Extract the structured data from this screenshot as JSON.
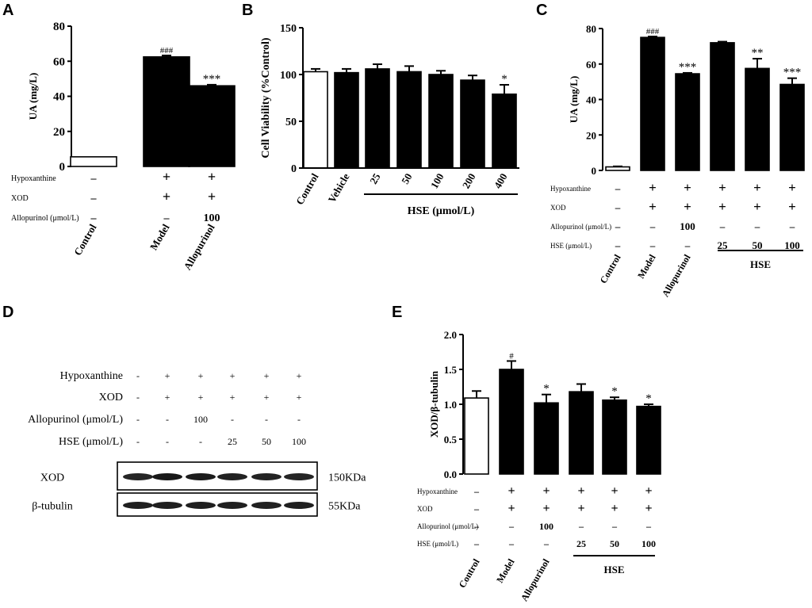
{
  "panels": {
    "A": "A",
    "B": "B",
    "C": "C",
    "D": "D",
    "E": "E"
  },
  "chart_data": [
    {
      "panel": "A",
      "type": "bar",
      "ylabel": "UA (mg/L)",
      "ylim": [
        0,
        80
      ],
      "yticks": [
        "0",
        "20",
        "40",
        "60",
        "80"
      ],
      "categories": [
        "Control",
        "Model",
        "Allopurinol"
      ],
      "values": [
        5.5,
        62.5,
        46.0
      ],
      "errors": [
        0,
        0.8,
        0.6
      ],
      "fills": [
        "white",
        "black",
        "black"
      ],
      "annotations": [
        "",
        "###",
        "***"
      ],
      "treatments": [
        {
          "label": "Hypoxanthine",
          "values": [
            "–",
            "+",
            "+"
          ]
        },
        {
          "label": "XOD",
          "values": [
            "–",
            "+",
            "+"
          ]
        },
        {
          "label": "Allopurinol (μmol/L)",
          "values": [
            "–",
            "–",
            "100"
          ]
        }
      ]
    },
    {
      "panel": "B",
      "type": "bar",
      "ylabel": "Cell Viability (%Control)",
      "ylim": [
        0,
        150
      ],
      "yticks": [
        "0",
        "50",
        "100",
        "150"
      ],
      "categories": [
        "Control",
        "Vehicle",
        "25",
        "50",
        "100",
        "200",
        "400"
      ],
      "values": [
        103,
        102,
        106,
        103,
        100,
        94,
        79
      ],
      "errors": [
        3,
        4,
        5,
        6,
        4,
        5,
        10
      ],
      "fills": [
        "white",
        "black",
        "black",
        "black",
        "black",
        "black",
        "black"
      ],
      "annotations": [
        "",
        "",
        "",
        "",
        "",
        "",
        "*"
      ],
      "group_label": "HSE (μmol/L)"
    },
    {
      "panel": "C",
      "type": "bar",
      "ylabel": "UA (mg/L)",
      "ylim": [
        0,
        80
      ],
      "yticks": [
        "0",
        "20",
        "40",
        "60",
        "80"
      ],
      "categories": [
        "Control",
        "Model",
        "Allopurinol",
        "",
        "",
        ""
      ],
      "values": [
        2,
        75,
        54.5,
        72,
        57.5,
        48.5
      ],
      "errors": [
        0.3,
        0.5,
        0.5,
        0.6,
        5.5,
        3.5
      ],
      "fills": [
        "white",
        "black",
        "black",
        "black",
        "black",
        "black"
      ],
      "annotations": [
        "",
        "###",
        "***",
        "",
        "**",
        "***"
      ],
      "treatments": [
        {
          "label": "Hypoxanthine",
          "values": [
            "–",
            "+",
            "+",
            "+",
            "+",
            "+"
          ]
        },
        {
          "label": "XOD",
          "values": [
            "–",
            "+",
            "+",
            "+",
            "+",
            "+"
          ]
        },
        {
          "label": "Allopurinol (μmol/L)",
          "values": [
            "–",
            "–",
            "100",
            "–",
            "–",
            "–"
          ]
        },
        {
          "label": "HSE (μmol/L)",
          "values": [
            "–",
            "–",
            "–",
            "25",
            "50",
            "100"
          ]
        }
      ],
      "group_label": "HSE"
    },
    {
      "panel": "E",
      "type": "bar",
      "ylabel": "XOD/β-tubulin",
      "ylim": [
        0,
        2.0
      ],
      "yticks": [
        "0.0",
        "0.5",
        "1.0",
        "1.5",
        "2.0"
      ],
      "categories": [
        "Control",
        "Model",
        "Allopurinol",
        "",
        "",
        ""
      ],
      "values": [
        1.09,
        1.5,
        1.02,
        1.18,
        1.06,
        0.97
      ],
      "errors": [
        0.1,
        0.12,
        0.12,
        0.11,
        0.04,
        0.03
      ],
      "fills": [
        "white",
        "black",
        "black",
        "black",
        "black",
        "black"
      ],
      "annotations": [
        "",
        "#",
        "*",
        "",
        "*",
        "*"
      ],
      "treatments": [
        {
          "label": "Hypoxanthine",
          "values": [
            "–",
            "+",
            "+",
            "+",
            "+",
            "+"
          ]
        },
        {
          "label": "XOD",
          "values": [
            "–",
            "+",
            "+",
            "+",
            "+",
            "+"
          ]
        },
        {
          "label": "Allopurinol (μmol/L)",
          "values": [
            "–",
            "–",
            "100",
            "–",
            "–",
            "–"
          ]
        },
        {
          "label": "HSE (μmol/L)",
          "values": [
            "–",
            "–",
            "–",
            "25",
            "50",
            "100"
          ]
        }
      ],
      "group_label": "HSE"
    }
  ],
  "blot": {
    "treatments": [
      {
        "label": "Hypoxanthine",
        "values": [
          "-",
          "+",
          "+",
          "+",
          "+",
          "+"
        ]
      },
      {
        "label": "XOD",
        "values": [
          "-",
          "+",
          "+",
          "+",
          "+",
          "+"
        ]
      },
      {
        "label": "Allopurinol (μmol/L)",
        "values": [
          "-",
          "-",
          "100",
          "-",
          "-",
          "-"
        ]
      },
      {
        "label": "HSE (μmol/L)",
        "values": [
          "-",
          "-",
          "-",
          "25",
          "50",
          "100"
        ]
      }
    ],
    "bands": [
      {
        "protein": "XOD",
        "size": "150KDa",
        "intensity": [
          0.75,
          0.95,
          0.88,
          0.8,
          0.78,
          0.76
        ]
      },
      {
        "protein": "β-tubulin",
        "size": "55KDa",
        "intensity": [
          0.85,
          0.85,
          0.85,
          0.85,
          0.82,
          0.85
        ]
      }
    ]
  }
}
